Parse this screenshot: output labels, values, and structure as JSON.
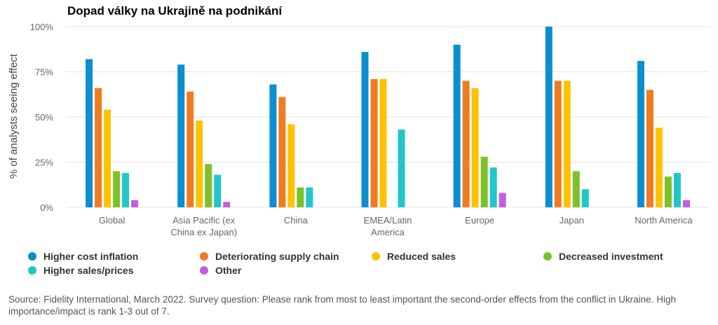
{
  "title": "Dopad války na Ukrajině na podnikání",
  "source": "Source: Fidelity International, March 2022. Survey question: Please rank from most to least important the second-order effects from the conflict in Ukraine. High importance/impact is rank 1-3 out of 7.",
  "colors": {
    "Higher cost inflation": "#0a8fd0",
    "Deteriorating supply chain": "#f07c22",
    "Reduced sales": "#fdc300",
    "Decreased investment": "#7dc12a",
    "Higher sales/prices": "#21c7c8",
    "Other": "#c25ee0"
  },
  "chart_data": {
    "type": "bar",
    "ylabel": "% of analysts seeing effect",
    "xlabel": "",
    "ylim": [
      0,
      100
    ],
    "yticks": [
      "0%",
      "25%",
      "50%",
      "75%",
      "100%"
    ],
    "grid": true,
    "legend_position": "bottom",
    "categories": [
      [
        "Global"
      ],
      [
        "Asia Pacific (ex",
        "China ex Japan)"
      ],
      [
        "China"
      ],
      [
        "EMEA/Latin",
        "America"
      ],
      [
        "Europe"
      ],
      [
        "Japan"
      ],
      [
        "North America"
      ]
    ],
    "series": [
      {
        "name": "Higher cost inflation",
        "values": [
          82,
          79,
          68,
          86,
          90,
          100,
          81
        ]
      },
      {
        "name": "Deteriorating supply chain",
        "values": [
          66,
          64,
          61,
          71,
          70,
          70,
          65
        ]
      },
      {
        "name": "Reduced sales",
        "values": [
          54,
          48,
          46,
          71,
          66,
          70,
          44
        ]
      },
      {
        "name": "Decreased investment",
        "values": [
          20,
          24,
          11,
          0,
          28,
          20,
          17
        ]
      },
      {
        "name": "Higher sales/prices",
        "values": [
          19,
          18,
          11,
          43,
          22,
          10,
          19
        ]
      },
      {
        "name": "Other",
        "values": [
          4,
          3,
          0,
          0,
          8,
          0,
          4
        ]
      }
    ]
  }
}
